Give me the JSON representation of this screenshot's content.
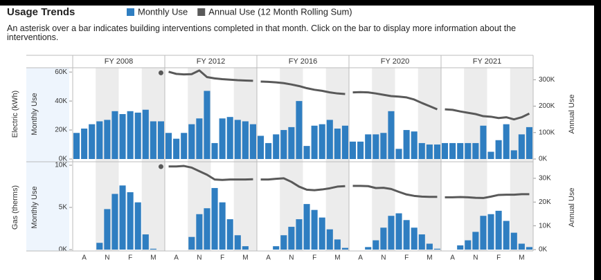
{
  "title": "Usage Trends",
  "note": "An asterisk over a bar indicates building interventions completed in that month. Click on the bar to display more information about the interventions.",
  "chart_data": {
    "type": "bar_line",
    "columns": [
      "FY 2008",
      "FY 2012",
      "FY 2016",
      "FY 2020",
      "FY 2021"
    ],
    "categories": [
      null,
      "A",
      null,
      null,
      "N",
      null,
      null,
      "F",
      null,
      null,
      "M",
      null
    ],
    "rows": [
      {
        "label": "Electric (kWh)",
        "ylabel": "Monthly Use",
        "y2label": "Annual Use",
        "ylim": [
          0,
          62000
        ],
        "yticks": [
          {
            "value": 0,
            "label": "0K"
          },
          {
            "value": 20000,
            "label": "20K"
          },
          {
            "value": 40000,
            "label": "40K"
          },
          {
            "value": 60000,
            "label": "60K"
          }
        ],
        "y2lim": [
          0,
          340000
        ],
        "y2ticks": [
          {
            "value": 0,
            "label": "0K"
          },
          {
            "value": 100000,
            "label": "100K"
          },
          {
            "value": 200000,
            "label": "200K"
          },
          {
            "value": 300000,
            "label": "300K"
          }
        ]
      },
      {
        "label": "Gas (therms)",
        "ylabel": "Monthly Use",
        "y2label": "Annual Use",
        "ylim": [
          0,
          10000
        ],
        "yticks": [
          {
            "value": 0,
            "label": "0K"
          },
          {
            "value": 5000,
            "label": "5K"
          },
          {
            "value": 10000,
            "label": "10K"
          }
        ],
        "y2lim": [
          0,
          35500
        ],
        "y2ticks": [
          {
            "value": 0,
            "label": "0K"
          },
          {
            "value": 10000,
            "label": "10K"
          },
          {
            "value": 20000,
            "label": "20K"
          },
          {
            "value": 30000,
            "label": "30K"
          }
        ]
      }
    ],
    "series": [
      {
        "name": "Monthly Use",
        "color": "#2f7ec1",
        "values": [
          [
            [
              18000,
              21000,
              24000,
              26000,
              27000,
              33000,
              31000,
              33000,
              32000,
              34000,
              26000,
              26000
            ],
            [
              18000,
              14000,
              18000,
              24000,
              28000,
              47000,
              11000,
              28000,
              29000,
              27000,
              26000,
              24000
            ],
            [
              16000,
              11000,
              17000,
              20000,
              22000,
              40000,
              9000,
              23000,
              24000,
              27000,
              21000,
              23000
            ],
            [
              12000,
              12000,
              17000,
              17000,
              18000,
              33000,
              7000,
              20000,
              19000,
              11000,
              10000,
              10000
            ],
            [
              11000,
              11000,
              11000,
              11000,
              11000,
              23000,
              5000,
              13000,
              24000,
              6000,
              17000,
              22000
            ]
          ],
          [
            [
              0,
              0,
              0,
              800,
              4800,
              6600,
              7600,
              6800,
              5600,
              1800,
              100,
              0
            ],
            [
              0,
              0,
              0,
              1500,
              4200,
              4900,
              7300,
              5600,
              3600,
              1700,
              400,
              0
            ],
            [
              0,
              0,
              400,
              1700,
              2700,
              3600,
              5400,
              4700,
              3800,
              2400,
              1200,
              200
            ],
            [
              0,
              0,
              300,
              1100,
              2600,
              4000,
              4300,
              3500,
              2600,
              1800,
              700,
              100
            ],
            [
              0,
              0,
              500,
              1100,
              2100,
              4000,
              4200,
              4600,
              3400,
              2000,
              700,
              300
            ]
          ]
        ]
      },
      {
        "name": "Annual Use (12 Month Rolling Sum)",
        "color": "#595959",
        "axis": "y2",
        "values": [
          [
            [
              null,
              null,
              null,
              null,
              null,
              null,
              null,
              null,
              null,
              null,
              null,
              326000
            ],
            [
              330000,
              322000,
              320000,
              321000,
              335000,
              310000,
              305000,
              302000,
              300000,
              298000,
              297000,
              296000
            ],
            [
              293000,
              292000,
              290000,
              287000,
              282000,
              276000,
              268000,
              262000,
              258000,
              252000,
              248000,
              246000
            ],
            [
              252000,
              253000,
              252000,
              248000,
              243000,
              238000,
              236000,
              233000,
              225000,
              212000,
              200000,
              188000
            ],
            [
              188000,
              186000,
              180000,
              175000,
              170000,
              162000,
              160000,
              155000,
              158000,
              150000,
              158000,
              172000
            ]
          ],
          [
            [
              null,
              null,
              null,
              null,
              null,
              null,
              null,
              null,
              null,
              null,
              null,
              34900
            ],
            [
              35000,
              35000,
              35200,
              34500,
              33000,
              31500,
              29500,
              29300,
              29500,
              29500,
              29500,
              29600
            ],
            [
              29500,
              29500,
              29800,
              30000,
              28500,
              26500,
              25200,
              25000,
              25300,
              25800,
              26500,
              26700
            ],
            [
              26800,
              26800,
              26700,
              25900,
              26000,
              25500,
              24300,
              23200,
              22600,
              22300,
              22200,
              22200
            ],
            [
              22000,
              22000,
              22100,
              22000,
              21800,
              21700,
              22300,
              23000,
              23100,
              23100,
              23300,
              23300
            ]
          ]
        ]
      }
    ]
  }
}
